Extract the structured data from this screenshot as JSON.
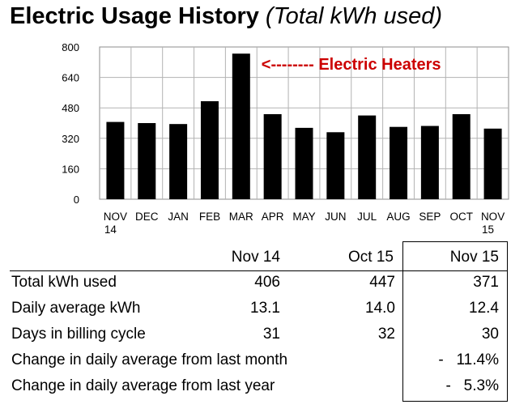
{
  "title": {
    "main": "Electric Usage History",
    "sub": "(Total kWh used)"
  },
  "chart_data": {
    "type": "bar",
    "categories": [
      "NOV 14",
      "DEC",
      "JAN",
      "FEB",
      "MAR",
      "APR",
      "MAY",
      "JUN",
      "JUL",
      "AUG",
      "SEP",
      "OCT",
      "NOV 15"
    ],
    "category_lines": [
      [
        "NOV",
        "14"
      ],
      [
        "DEC"
      ],
      [
        "JAN"
      ],
      [
        "FEB"
      ],
      [
        "MAR"
      ],
      [
        "APR"
      ],
      [
        "MAY"
      ],
      [
        "JUN"
      ],
      [
        "JUL"
      ],
      [
        "AUG"
      ],
      [
        "SEP"
      ],
      [
        "OCT"
      ],
      [
        "NOV",
        "15"
      ]
    ],
    "values": [
      406,
      400,
      395,
      515,
      765,
      447,
      375,
      352,
      440,
      380,
      385,
      447,
      371
    ],
    "ylim": [
      0,
      800
    ],
    "yticks": [
      0,
      160,
      320,
      480,
      640,
      800
    ],
    "grid": true,
    "bar_color": "#000000",
    "annotation": {
      "text": "<-------- Electric Heaters",
      "color": "#cc0000",
      "category": "MAR"
    }
  },
  "table": {
    "headers": [
      "Nov 14",
      "Oct 15",
      "Nov 15"
    ],
    "rows": [
      {
        "label": "Total kWh used",
        "values": [
          "406",
          "447",
          "371"
        ]
      },
      {
        "label": "Daily average kWh",
        "values": [
          "13.1",
          "14.0",
          "12.4"
        ]
      },
      {
        "label": "Days in billing cycle",
        "values": [
          "31",
          "32",
          "30"
        ]
      },
      {
        "label": "Change in daily average from last month",
        "values": [
          "",
          "",
          "-   11.4%"
        ]
      },
      {
        "label": "Change in daily average from last year",
        "values": [
          "",
          "",
          "-   5.3%"
        ]
      }
    ]
  }
}
